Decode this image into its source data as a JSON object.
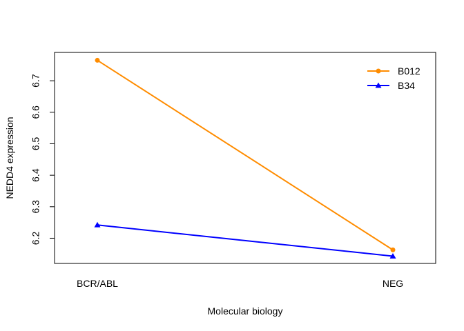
{
  "chart_data": {
    "type": "line",
    "title": "",
    "xlabel": "Molecular biology",
    "ylabel": "NEDD4 expression",
    "categories": [
      "BCR/ABL",
      "NEG"
    ],
    "ylim": [
      6.12,
      6.79
    ],
    "yticks": [
      6.2,
      6.3,
      6.4,
      6.5,
      6.6,
      6.7
    ],
    "grid": false,
    "legend_position": "top-right",
    "series": [
      {
        "name": "B012",
        "values": [
          6.765,
          6.163
        ],
        "color": "#FF8C00",
        "marker": "circle"
      },
      {
        "name": "B34",
        "values": [
          6.242,
          6.143
        ],
        "color": "#0000FF",
        "marker": "triangle"
      }
    ]
  }
}
